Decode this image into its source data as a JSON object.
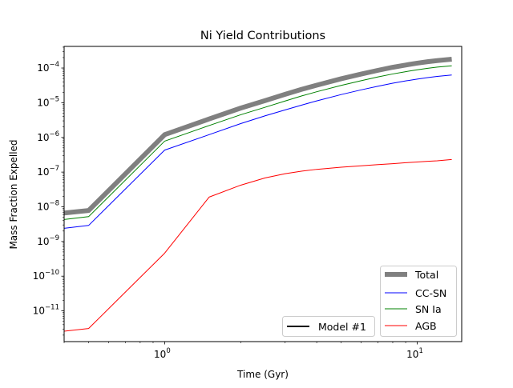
{
  "chart_data": {
    "type": "line",
    "title": "Ni Yield Contributions",
    "xlabel": "Time (Gyr)",
    "ylabel": "Mass Fraction Expelled",
    "xscale": "log",
    "yscale": "log",
    "xlim": [
      0.4,
      15
    ],
    "ylim": [
      1.3e-12,
      0.00042
    ],
    "xticks": [
      {
        "value": 1,
        "base": "10",
        "exp": "0"
      },
      {
        "value": 10,
        "base": "10",
        "exp": "1"
      }
    ],
    "yticks": [
      {
        "value": 1e-11,
        "base": "10",
        "exp": "−11"
      },
      {
        "value": 1e-10,
        "base": "10",
        "exp": "−10"
      },
      {
        "value": 1e-09,
        "base": "10",
        "exp": "−9"
      },
      {
        "value": 1e-08,
        "base": "10",
        "exp": "−8"
      },
      {
        "value": 1e-07,
        "base": "10",
        "exp": "−7"
      },
      {
        "value": 1e-06,
        "base": "10",
        "exp": "−6"
      },
      {
        "value": 1e-05,
        "base": "10",
        "exp": "−5"
      },
      {
        "value": 0.0001,
        "base": "10",
        "exp": "−4"
      }
    ],
    "x": [
      0.4,
      0.5,
      1.0,
      1.5,
      2.0,
      2.5,
      3.0,
      3.5,
      4.0,
      5.0,
      6.0,
      7.0,
      8.0,
      9.0,
      10.0,
      11.0,
      12.0,
      13.7
    ],
    "series": [
      {
        "name": "Total",
        "color": "#808080",
        "width": 6,
        "values": [
          6.6e-09,
          7.8e-09,
          1.2e-06,
          3.4e-06,
          7e-06,
          1.15e-05,
          1.75e-05,
          2.45e-05,
          3.2e-05,
          4.9e-05,
          6.7e-05,
          8.6e-05,
          0.000105,
          0.000122,
          0.000138,
          0.000152,
          0.000164,
          0.00018
        ]
      },
      {
        "name": "CC-SN",
        "color": "#0000ff",
        "width": 1,
        "values": [
          2.4e-09,
          2.9e-09,
          4.3e-07,
          1.2e-06,
          2.5e-06,
          4.2e-06,
          6.2e-06,
          8.6e-06,
          1.13e-05,
          1.72e-05,
          2.35e-05,
          3e-05,
          3.65e-05,
          4.25e-05,
          4.8e-05,
          5.3e-05,
          5.75e-05,
          6.3e-05
        ]
      },
      {
        "name": "SN Ia",
        "color": "#008000",
        "width": 1,
        "values": [
          4.3e-09,
          5.2e-09,
          7.8e-07,
          2.2e-06,
          4.5e-06,
          7.4e-06,
          1.12e-05,
          1.58e-05,
          2.07e-05,
          3.15e-05,
          4.3e-05,
          5.55e-05,
          6.75e-05,
          7.85e-05,
          8.9e-05,
          9.8e-05,
          0.000106,
          0.000116
        ]
      },
      {
        "name": "AGB",
        "color": "#ff0000",
        "width": 1,
        "values": [
          2.6e-12,
          3.1e-12,
          4.6e-10,
          1.9e-08,
          4.2e-08,
          6.8e-08,
          9e-08,
          1.07e-07,
          1.2e-07,
          1.38e-07,
          1.52e-07,
          1.64e-07,
          1.75e-07,
          1.86e-07,
          1.96e-07,
          2.05e-07,
          2.12e-07,
          2.3e-07
        ]
      }
    ],
    "legend_main": {
      "placement": "lower-right",
      "entries": [
        "Total",
        "CC-SN",
        "SN Ia",
        "AGB"
      ]
    },
    "legend_model": {
      "placement": "lower-center-right",
      "label": "Model #1",
      "color": "#000000"
    },
    "grid": false
  }
}
